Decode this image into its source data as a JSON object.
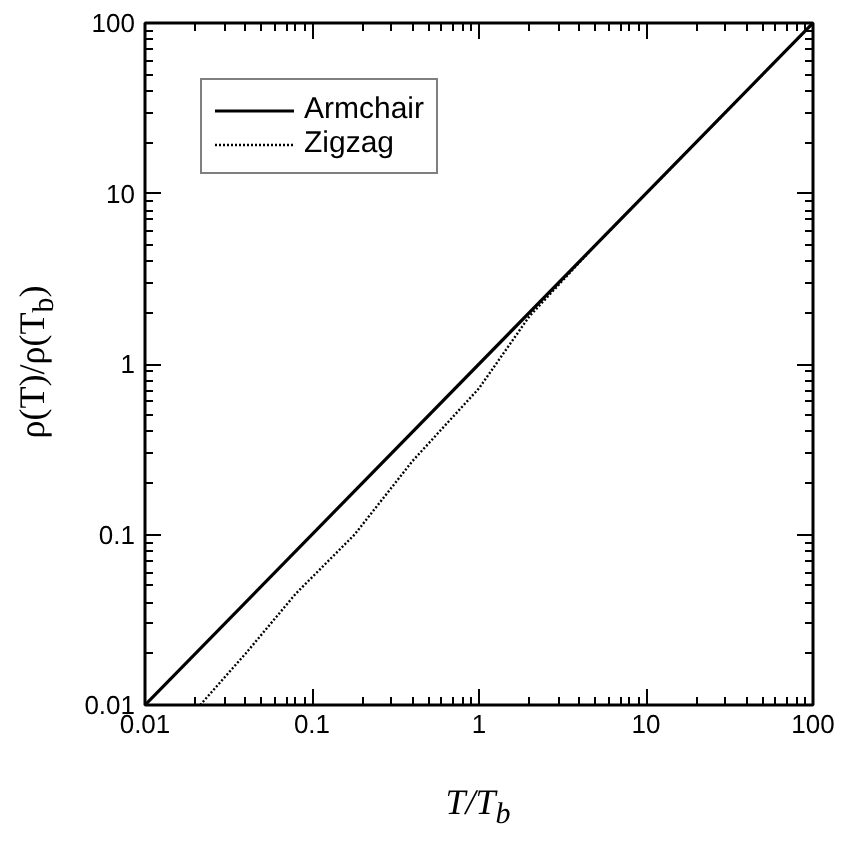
{
  "chart_data": {
    "type": "line",
    "xlabel": "T/T$_{b}$",
    "ylabel": "ρ(T)/ρ(T$_{b}$)",
    "log": "xy",
    "xlim": [
      0.01,
      100
    ],
    "ylim": [
      0.01,
      100
    ],
    "xticks": [
      0.01,
      0.1,
      1,
      10,
      100
    ],
    "yticks": [
      0.01,
      0.1,
      1,
      10,
      100
    ],
    "legend": "top left",
    "grid": false,
    "series": [
      {
        "name": "Armchair",
        "color": "#000000",
        "line_style": "solid",
        "x": [
          0.01,
          100
        ],
        "values": [
          0.01,
          100
        ]
      },
      {
        "name": "Zigzag",
        "color": "#000000",
        "line_style": "dotted",
        "x": [
          0.0214,
          0.04,
          0.08,
          0.18,
          0.4,
          1,
          2,
          5,
          10,
          100
        ],
        "values": [
          0.01,
          0.02,
          0.045,
          0.1,
          0.27,
          0.72,
          1.9,
          5,
          10,
          100
        ]
      }
    ]
  }
}
